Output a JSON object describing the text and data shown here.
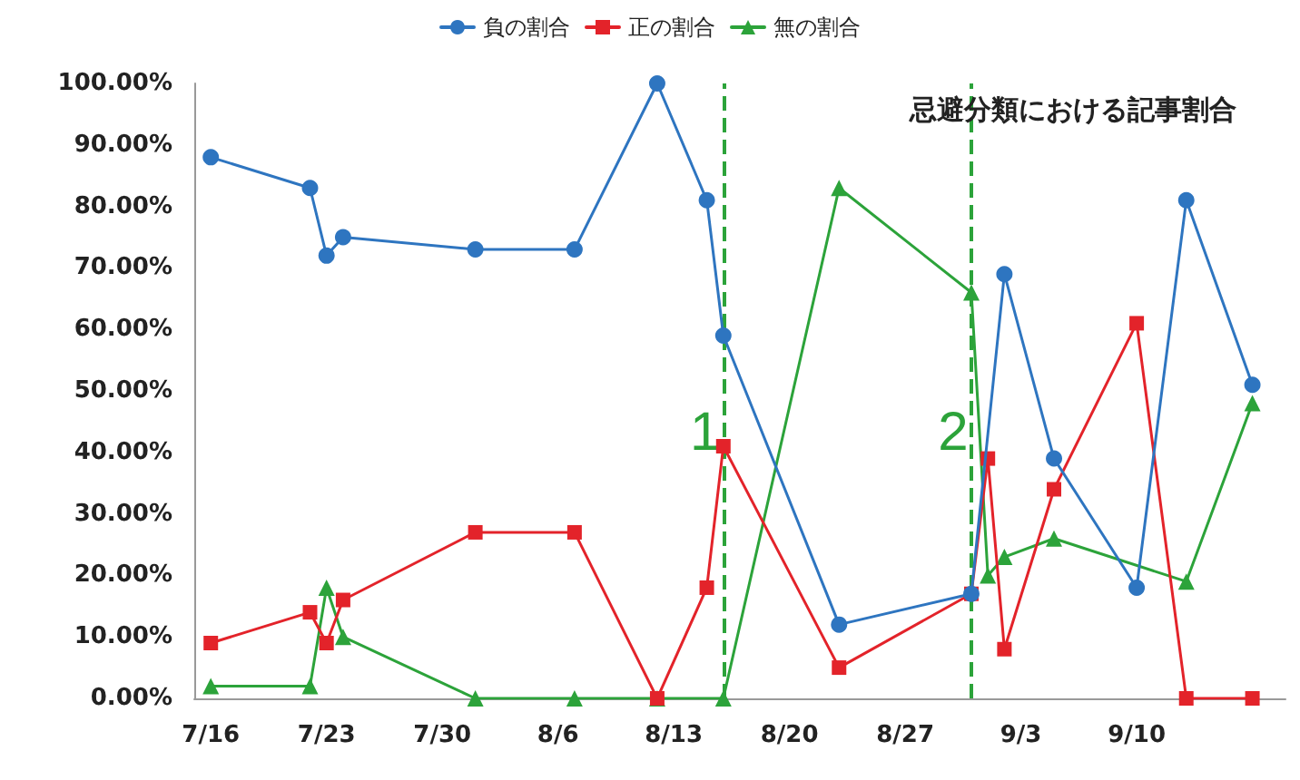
{
  "chart_data": {
    "type": "line",
    "title": "忌避分類における記事割合",
    "xlim": [
      "--07-15",
      "--09-19"
    ],
    "xticks": [
      {
        "value": "--07-16",
        "label": "7/16"
      },
      {
        "value": "--07-23",
        "label": "7/23"
      },
      {
        "value": "--07-30",
        "label": "7/30"
      },
      {
        "value": "--08-06",
        "label": "8/6"
      },
      {
        "value": "--08-13",
        "label": "8/13"
      },
      {
        "value": "--08-20",
        "label": "8/20"
      },
      {
        "value": "--08-27",
        "label": "8/27"
      },
      {
        "value": "--09-03",
        "label": "9/3"
      },
      {
        "value": "--09-10",
        "label": "9/10"
      }
    ],
    "ylim": [
      0,
      100
    ],
    "yticks": [
      {
        "value": 0,
        "label": "0.00%"
      },
      {
        "value": 10,
        "label": "10.00%"
      },
      {
        "value": 20,
        "label": "20.00%"
      },
      {
        "value": 30,
        "label": "30.00%"
      },
      {
        "value": 40,
        "label": "40.00%"
      },
      {
        "value": 50,
        "label": "50.00%"
      },
      {
        "value": 60,
        "label": "60.00%"
      },
      {
        "value": 70,
        "label": "70.00%"
      },
      {
        "value": 80,
        "label": "80.00%"
      },
      {
        "value": 90,
        "label": "90.00%"
      },
      {
        "value": 100,
        "label": "100.00%"
      }
    ],
    "grid": false,
    "legend": "top",
    "series": [
      {
        "name": "負の割合",
        "color": "#2e75c0",
        "marker": "circle",
        "x": [
          "--07-16",
          "--07-22",
          "--07-23",
          "--07-24",
          "--08-01",
          "--08-07",
          "--08-12",
          "--08-15",
          "--08-16",
          "--08-23",
          "--08-31",
          "--09-02",
          "--09-05",
          "--09-10",
          "--09-13",
          "--09-17"
        ],
        "values": [
          88,
          83,
          72,
          75,
          73,
          73,
          100,
          81,
          59,
          12,
          17,
          69,
          39,
          18,
          81,
          51
        ]
      },
      {
        "name": "正の割合",
        "color": "#e3232a",
        "marker": "square",
        "x": [
          "--07-16",
          "--07-22",
          "--07-23",
          "--07-24",
          "--08-01",
          "--08-07",
          "--08-12",
          "--08-15",
          "--08-16",
          "--08-23",
          "--08-31",
          "--09-01",
          "--09-02",
          "--09-05",
          "--09-10",
          "--09-13",
          "--09-17"
        ],
        "values": [
          9,
          14,
          9,
          16,
          27,
          27,
          0,
          18,
          41,
          5,
          17,
          39,
          8,
          34,
          61,
          0,
          0
        ]
      },
      {
        "name": "無の割合",
        "color": "#2ca33a",
        "marker": "triangle",
        "x": [
          "--07-16",
          "--07-22",
          "--07-23",
          "--07-24",
          "--08-01",
          "--08-07",
          "--08-12",
          "--08-16",
          "--08-23",
          "--08-31",
          "--09-01",
          "--09-02",
          "--09-05",
          "--09-13",
          "--09-17"
        ],
        "values": [
          2,
          2,
          18,
          10,
          0,
          0,
          0,
          0,
          83,
          66,
          20,
          23,
          26,
          19,
          48
        ]
      }
    ],
    "ref_lines": [
      {
        "axis": "x",
        "value": "--08-16",
        "label": "1",
        "color": "#2ca33a",
        "line_style": "dashed"
      },
      {
        "axis": "x",
        "value": "--08-31",
        "label": "2",
        "color": "#2ca33a",
        "line_style": "dashed"
      }
    ]
  }
}
